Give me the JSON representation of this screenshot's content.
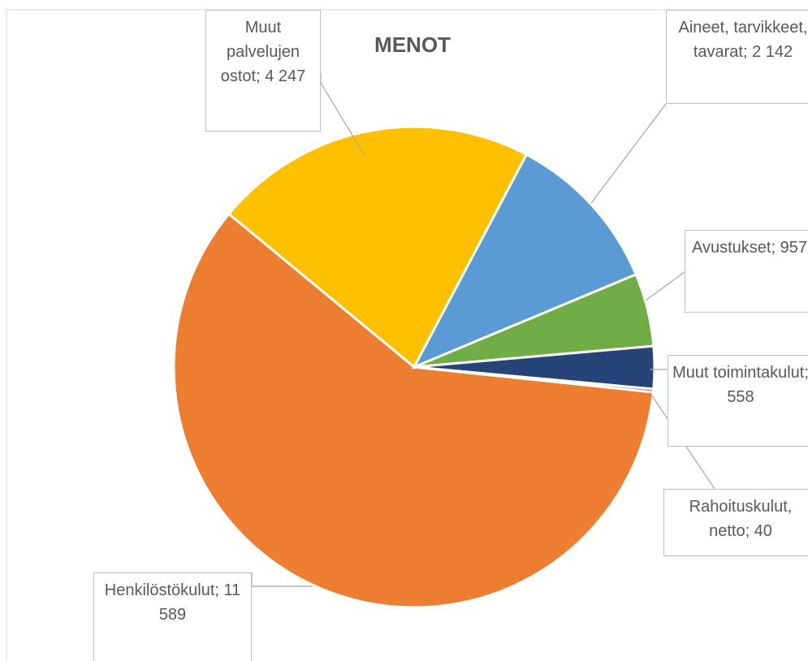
{
  "chart_data": {
    "type": "pie",
    "title": "MENOT",
    "categories": [
      "Henkilöstökulut",
      "Muut palvelujen ostot",
      "Aineet, tarvikkeet, tavarat",
      "Avustukset",
      "Muut toimintakulut",
      "Rahoituskulut, netto"
    ],
    "values": [
      11589,
      4247,
      2142,
      957,
      558,
      40
    ],
    "value_labels": [
      "; 11 589",
      "; 4 247",
      "; 2 142",
      "; 957",
      "; 558",
      "; 40"
    ],
    "colors": [
      "#ED7D31",
      "#FFC000",
      "#5B9BD5",
      "#70AD47",
      "#264478",
      "#9E480E"
    ]
  }
}
